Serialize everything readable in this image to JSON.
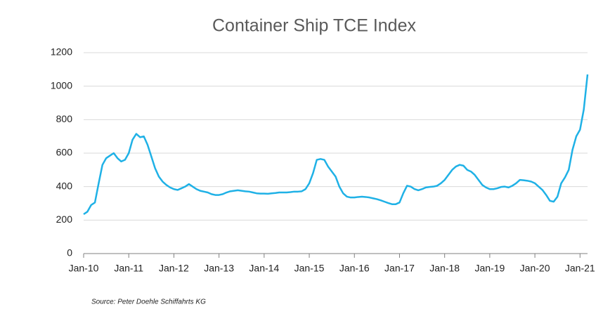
{
  "chart_data": {
    "type": "line",
    "title": "Container Ship TCE Index",
    "source": "Source: Peter Doehle Schiffahrts KG",
    "x": [
      "2010-01",
      "2010-02",
      "2010-03",
      "2010-04",
      "2010-05",
      "2010-06",
      "2010-07",
      "2010-08",
      "2010-09",
      "2010-10",
      "2010-11",
      "2010-12",
      "2011-01",
      "2011-02",
      "2011-03",
      "2011-04",
      "2011-05",
      "2011-06",
      "2011-07",
      "2011-08",
      "2011-09",
      "2011-10",
      "2011-11",
      "2011-12",
      "2012-01",
      "2012-02",
      "2012-03",
      "2012-04",
      "2012-05",
      "2012-06",
      "2012-07",
      "2012-08",
      "2012-09",
      "2012-10",
      "2012-11",
      "2012-12",
      "2013-01",
      "2013-02",
      "2013-03",
      "2013-04",
      "2013-05",
      "2013-06",
      "2013-07",
      "2013-08",
      "2013-09",
      "2013-10",
      "2013-11",
      "2013-12",
      "2014-01",
      "2014-02",
      "2014-03",
      "2014-04",
      "2014-05",
      "2014-06",
      "2014-07",
      "2014-08",
      "2014-09",
      "2014-10",
      "2014-11",
      "2014-12",
      "2015-01",
      "2015-02",
      "2015-03",
      "2015-04",
      "2015-05",
      "2015-06",
      "2015-07",
      "2015-08",
      "2015-09",
      "2015-10",
      "2015-11",
      "2015-12",
      "2016-01",
      "2016-02",
      "2016-03",
      "2016-04",
      "2016-05",
      "2016-06",
      "2016-07",
      "2016-08",
      "2016-09",
      "2016-10",
      "2016-11",
      "2016-12",
      "2017-01",
      "2017-02",
      "2017-03",
      "2017-04",
      "2017-05",
      "2017-06",
      "2017-07",
      "2017-08",
      "2017-09",
      "2017-10",
      "2017-11",
      "2017-12",
      "2018-01",
      "2018-02",
      "2018-03",
      "2018-04",
      "2018-05",
      "2018-06",
      "2018-07",
      "2018-08",
      "2018-09",
      "2018-10",
      "2018-11",
      "2018-12",
      "2019-01",
      "2019-02",
      "2019-03",
      "2019-04",
      "2019-05",
      "2019-06",
      "2019-07",
      "2019-08",
      "2019-09",
      "2019-10",
      "2019-11",
      "2019-12",
      "2020-01",
      "2020-02",
      "2020-03",
      "2020-04",
      "2020-05",
      "2020-06",
      "2020-07",
      "2020-08",
      "2020-09",
      "2020-10",
      "2020-11",
      "2020-12",
      "2021-01",
      "2021-02",
      "2021-03"
    ],
    "series": [
      {
        "name": "TCE Index",
        "color": "#1fb1e6",
        "values": [
          235,
          250,
          290,
          305,
          420,
          530,
          570,
          585,
          600,
          570,
          550,
          560,
          600,
          680,
          715,
          695,
          700,
          650,
          580,
          510,
          460,
          430,
          410,
          395,
          385,
          380,
          390,
          400,
          415,
          400,
          385,
          375,
          370,
          365,
          355,
          350,
          350,
          355,
          365,
          372,
          375,
          378,
          375,
          372,
          370,
          365,
          360,
          358,
          358,
          357,
          360,
          362,
          365,
          365,
          365,
          367,
          370,
          370,
          372,
          385,
          420,
          480,
          560,
          565,
          560,
          520,
          490,
          460,
          400,
          360,
          340,
          335,
          335,
          338,
          340,
          338,
          335,
          330,
          325,
          318,
          310,
          302,
          295,
          295,
          305,
          360,
          405,
          400,
          385,
          378,
          385,
          395,
          398,
          400,
          405,
          420,
          440,
          470,
          500,
          520,
          530,
          525,
          500,
          490,
          470,
          440,
          410,
          395,
          385,
          385,
          390,
          398,
          400,
          395,
          405,
          420,
          440,
          438,
          435,
          430,
          420,
          400,
          380,
          350,
          315,
          310,
          340,
          420,
          455,
          500,
          620,
          700,
          740,
          860,
          1070
        ]
      }
    ],
    "xlim": [
      "2010-01",
      "2021-03"
    ],
    "xticks": [
      {
        "value": "2010-01",
        "label": "Jan-10"
      },
      {
        "value": "2011-01",
        "label": "Jan-11"
      },
      {
        "value": "2012-01",
        "label": "Jan-12"
      },
      {
        "value": "2013-01",
        "label": "Jan-13"
      },
      {
        "value": "2014-01",
        "label": "Jan-14"
      },
      {
        "value": "2015-01",
        "label": "Jan-15"
      },
      {
        "value": "2016-01",
        "label": "Jan-16"
      },
      {
        "value": "2017-01",
        "label": "Jan-17"
      },
      {
        "value": "2018-01",
        "label": "Jan-18"
      },
      {
        "value": "2019-01",
        "label": "Jan-19"
      },
      {
        "value": "2020-01",
        "label": "Jan-20"
      },
      {
        "value": "2021-01",
        "label": "Jan-21"
      }
    ],
    "ylim": [
      0,
      1200
    ],
    "yticks": [
      0,
      200,
      400,
      600,
      800,
      1000,
      1200
    ],
    "grid": true
  }
}
